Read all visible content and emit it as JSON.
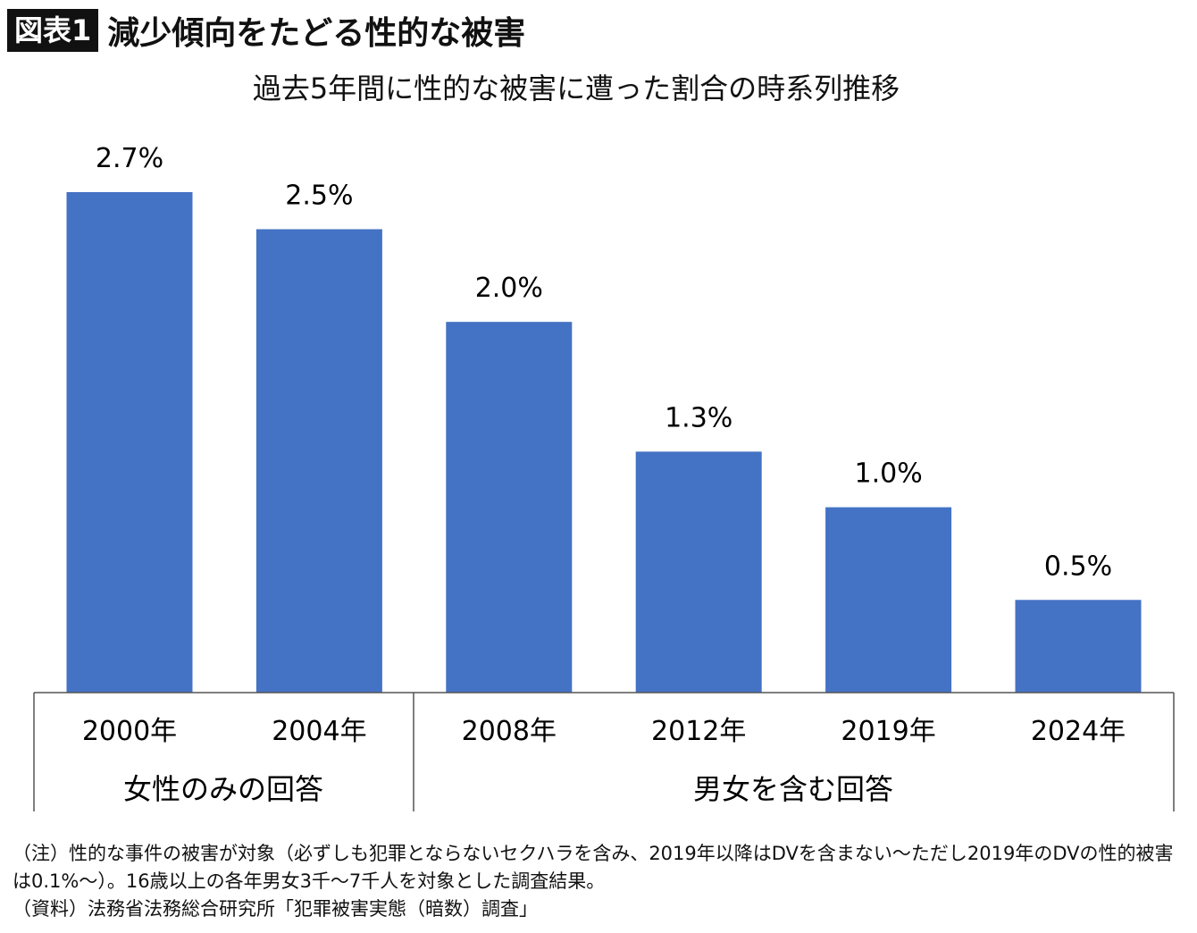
{
  "header": {
    "badge": "図表1",
    "title": "減少傾向をたどる性的な被害"
  },
  "chart_data": {
    "type": "bar",
    "title": "過去5年間に性的な被害に遭った割合の時系列推移",
    "categories": [
      "2000年",
      "2004年",
      "2008年",
      "2012年",
      "2019年",
      "2024年"
    ],
    "values": [
      2.7,
      2.5,
      2.0,
      1.3,
      1.0,
      0.5
    ],
    "data_labels": [
      "2.7%",
      "2.5%",
      "2.0%",
      "1.3%",
      "1.0%",
      "0.5%"
    ],
    "groups": [
      {
        "label": "女性のみの回答",
        "categories": [
          0,
          1
        ]
      },
      {
        "label": "男女を含む回答",
        "categories": [
          2,
          3,
          4,
          5
        ]
      }
    ],
    "ylim": [
      0,
      2.7
    ],
    "grid": false,
    "bar_color": "#4472C4"
  },
  "notes": [
    "（注）性的な事件の被害が対象（必ずしも犯罪とならないセクハラを含み、2019年以降はDVを含まない〜ただし2019年のDVの性的被害は0.1%〜）。16歳以上の各年男女3千〜7千人を対象とした調査結果。",
    "（資料）法務省法務総合研究所「犯罪被害実態（暗数）調査」"
  ]
}
